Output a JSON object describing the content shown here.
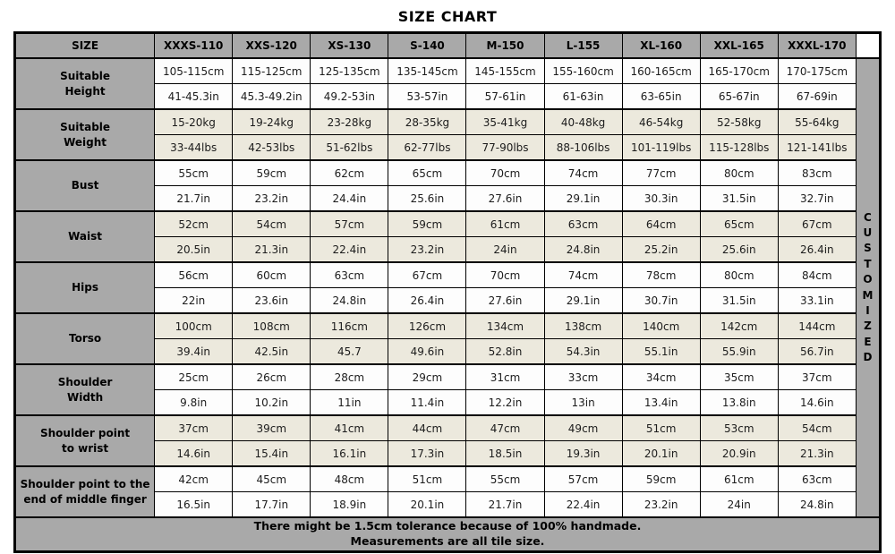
{
  "title": "SIZE CHART",
  "colors": {
    "header_gray": "#a9a9a9",
    "row_beige": "#ece9dd",
    "row_white": "#fdfdfd",
    "border_black": "#000000"
  },
  "table": {
    "header": [
      "SIZE",
      "XXXS-110",
      "XXS-120",
      "XS-130",
      "S-140",
      "M-150",
      "L-155",
      "XL-160",
      "XXL-165",
      "XXXL-170"
    ],
    "customized_label": "CUSTOMIZED",
    "groups": [
      {
        "label": "Suitable\nHeight",
        "row1": [
          "105-115cm",
          "115-125cm",
          "125-135cm",
          "135-145cm",
          "145-155cm",
          "155-160cm",
          "160-165cm",
          "165-170cm",
          "170-175cm"
        ],
        "row2": [
          "41-45.3in",
          "45.3-49.2in",
          "49.2-53in",
          "53-57in",
          "57-61in",
          "61-63in",
          "63-65in",
          "65-67in",
          "67-69in"
        ]
      },
      {
        "label": "Suitable\nWeight",
        "row1": [
          "15-20kg",
          "19-24kg",
          "23-28kg",
          "28-35kg",
          "35-41kg",
          "40-48kg",
          "46-54kg",
          "52-58kg",
          "55-64kg"
        ],
        "row2": [
          "33-44lbs",
          "42-53lbs",
          "51-62lbs",
          "62-77lbs",
          "77-90lbs",
          "88-106lbs",
          "101-119lbs",
          "115-128lbs",
          "121-141lbs"
        ]
      },
      {
        "label": "Bust",
        "row1": [
          "55cm",
          "59cm",
          "62cm",
          "65cm",
          "70cm",
          "74cm",
          "77cm",
          "80cm",
          "83cm"
        ],
        "row2": [
          "21.7in",
          "23.2in",
          "24.4in",
          "25.6in",
          "27.6in",
          "29.1in",
          "30.3in",
          "31.5in",
          "32.7in"
        ]
      },
      {
        "label": "Waist",
        "row1": [
          "52cm",
          "54cm",
          "57cm",
          "59cm",
          "61cm",
          "63cm",
          "64cm",
          "65cm",
          "67cm"
        ],
        "row2": [
          "20.5in",
          "21.3in",
          "22.4in",
          "23.2in",
          "24in",
          "24.8in",
          "25.2in",
          "25.6in",
          "26.4in"
        ]
      },
      {
        "label": "Hips",
        "row1": [
          "56cm",
          "60cm",
          "63cm",
          "67cm",
          "70cm",
          "74cm",
          "78cm",
          "80cm",
          "84cm"
        ],
        "row2": [
          "22in",
          "23.6in",
          "24.8in",
          "26.4in",
          "27.6in",
          "29.1in",
          "30.7in",
          "31.5in",
          "33.1in"
        ]
      },
      {
        "label": "Torso",
        "row1": [
          "100cm",
          "108cm",
          "116cm",
          "126cm",
          "134cm",
          "138cm",
          "140cm",
          "142cm",
          "144cm"
        ],
        "row2": [
          "39.4in",
          "42.5in",
          "45.7",
          "49.6in",
          "52.8in",
          "54.3in",
          "55.1in",
          "55.9in",
          "56.7in"
        ]
      },
      {
        "label": "Shoulder\nWidth",
        "row1": [
          "25cm",
          "26cm",
          "28cm",
          "29cm",
          "31cm",
          "33cm",
          "34cm",
          "35cm",
          "37cm"
        ],
        "row2": [
          "9.8in",
          "10.2in",
          "11in",
          "11.4in",
          "12.2in",
          "13in",
          "13.4in",
          "13.8in",
          "14.6in"
        ]
      },
      {
        "label": "Shoulder point\nto wrist",
        "row1": [
          "37cm",
          "39cm",
          "41cm",
          "44cm",
          "47cm",
          "49cm",
          "51cm",
          "53cm",
          "54cm"
        ],
        "row2": [
          "14.6in",
          "15.4in",
          "16.1in",
          "17.3in",
          "18.5in",
          "19.3in",
          "20.1in",
          "20.9in",
          "21.3in"
        ]
      },
      {
        "label": "Shoulder point to the\nend of middle finger",
        "row1": [
          "42cm",
          "45cm",
          "48cm",
          "51cm",
          "55cm",
          "57cm",
          "59cm",
          "61cm",
          "63cm"
        ],
        "row2": [
          "16.5in",
          "17.7in",
          "18.9in",
          "20.1in",
          "21.7in",
          "22.4in",
          "23.2in",
          "24in",
          "24.8in"
        ]
      }
    ]
  },
  "footer": {
    "line1": "There might be 1.5cm tolerance because of 100% handmade.",
    "line2": "Measurements are all tile size."
  }
}
